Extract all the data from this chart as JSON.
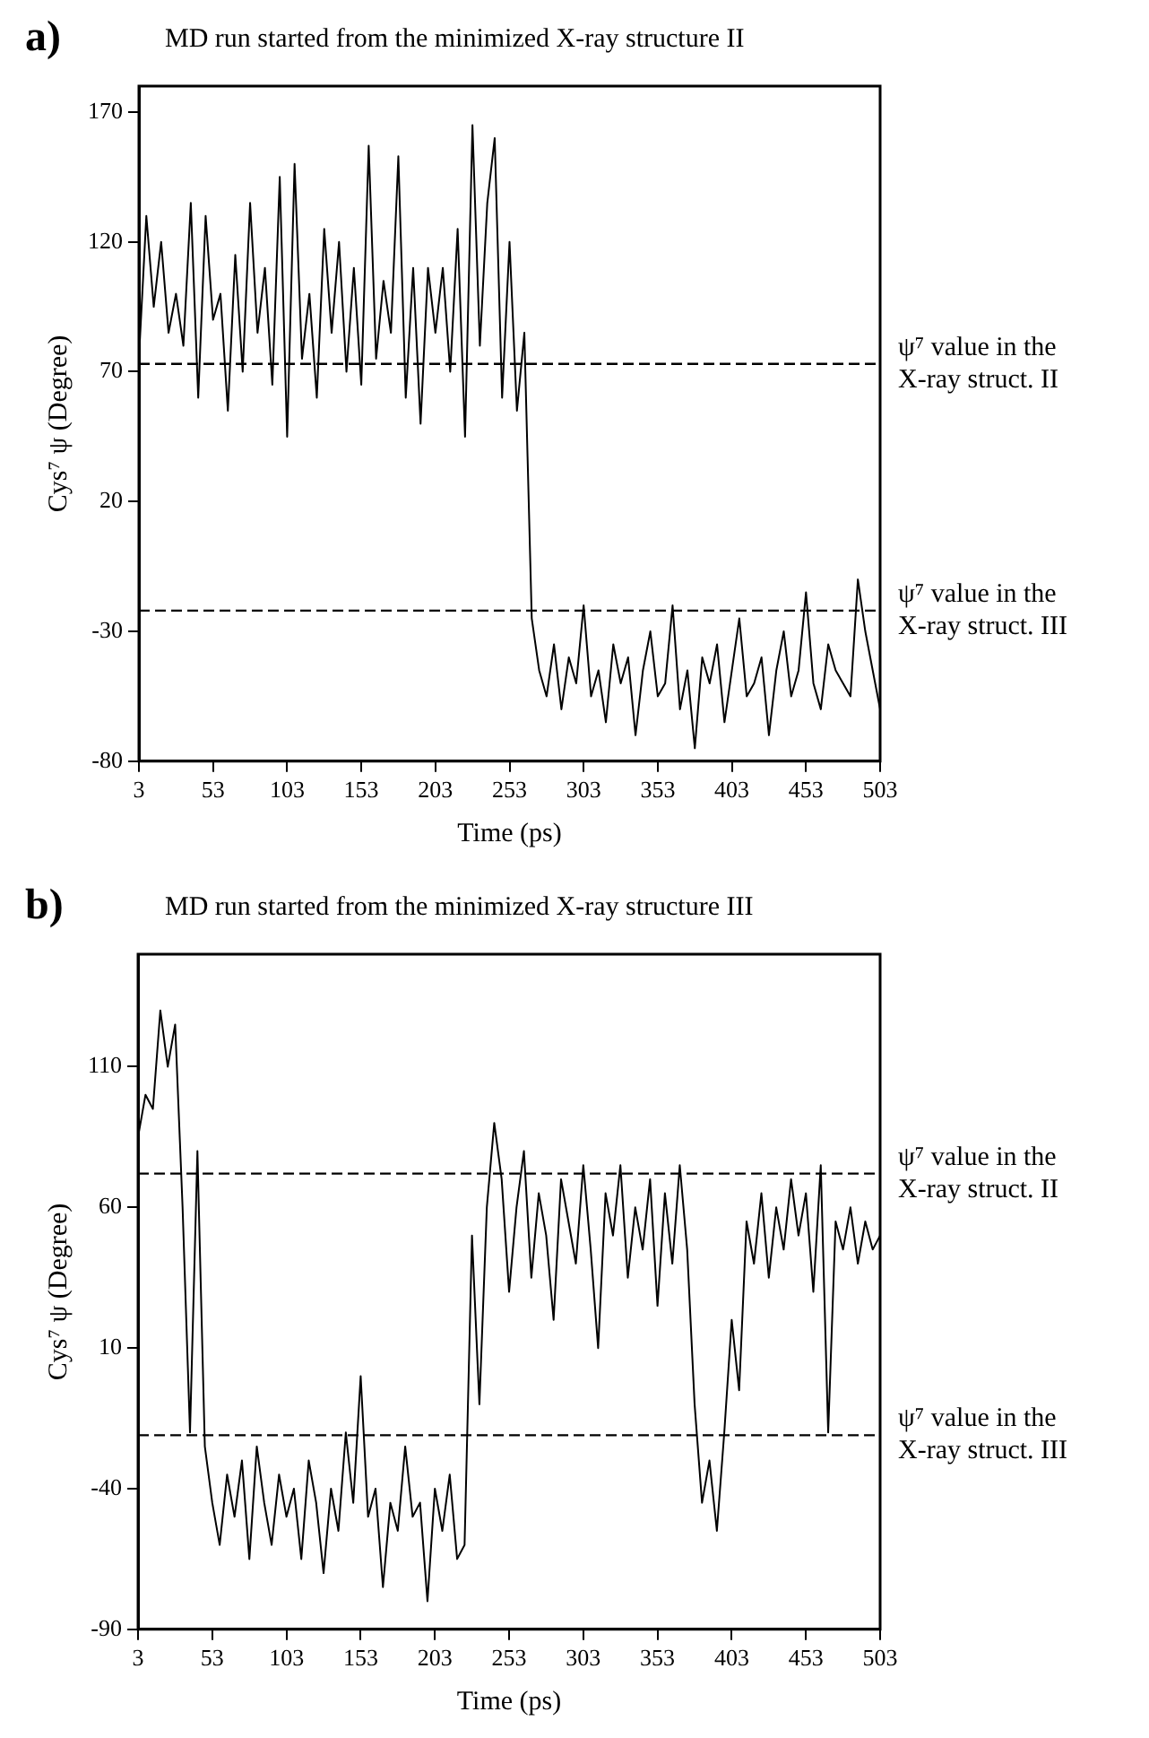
{
  "chart_data": [
    {
      "type": "line",
      "title": "MD run started from the minimized X-ray structure II",
      "annotations": [
        "a)"
      ],
      "xlabel": "Time (ps)",
      "ylabel": "Cys⁷ ψ (Degree)",
      "xlim": [
        3,
        503
      ],
      "xticks": [
        3,
        53,
        103,
        153,
        203,
        253,
        303,
        353,
        403,
        453,
        503
      ],
      "ylim": [
        -80,
        180
      ],
      "yticks": [
        -80,
        -30,
        20,
        70,
        120,
        170
      ],
      "grid": false,
      "legend": false,
      "marker": "none",
      "line_style": "solid",
      "ref_lines": [
        {
          "axis": "y",
          "value": 73,
          "label": "ψ⁷ value in the X-ray struct. II",
          "line_style": "dashed"
        },
        {
          "axis": "y",
          "value": -22,
          "label": "ψ⁷ value in the X-ray struct. III",
          "line_style": "dashed"
        }
      ],
      "series": [
        {
          "color": "#000000",
          "x": [
            3,
            8,
            13,
            18,
            23,
            28,
            33,
            38,
            43,
            48,
            53,
            58,
            63,
            68,
            73,
            78,
            83,
            88,
            93,
            98,
            103,
            108,
            113,
            118,
            123,
            128,
            133,
            138,
            143,
            148,
            153,
            158,
            163,
            168,
            173,
            178,
            183,
            188,
            193,
            198,
            203,
            208,
            213,
            218,
            223,
            228,
            233,
            238,
            243,
            248,
            253,
            258,
            263,
            268,
            273,
            278,
            283,
            288,
            293,
            298,
            303,
            308,
            313,
            318,
            323,
            328,
            333,
            338,
            343,
            348,
            353,
            358,
            363,
            368,
            373,
            378,
            383,
            388,
            393,
            398,
            403,
            408,
            413,
            418,
            423,
            428,
            433,
            438,
            443,
            448,
            453,
            458,
            463,
            468,
            473,
            478,
            483,
            488,
            493,
            498,
            503
          ],
          "values": [
            75,
            130,
            95,
            120,
            85,
            100,
            80,
            135,
            60,
            130,
            90,
            100,
            55,
            115,
            70,
            135,
            85,
            110,
            65,
            145,
            45,
            150,
            75,
            100,
            60,
            125,
            85,
            120,
            70,
            110,
            65,
            157,
            75,
            105,
            85,
            153,
            60,
            110,
            50,
            110,
            85,
            110,
            70,
            125,
            45,
            165,
            80,
            135,
            160,
            60,
            120,
            55,
            85,
            -25,
            -45,
            -55,
            -35,
            -60,
            -40,
            -50,
            -20,
            -55,
            -45,
            -65,
            -35,
            -50,
            -40,
            -70,
            -45,
            -30,
            -55,
            -50,
            -20,
            -60,
            -45,
            -75,
            -40,
            -50,
            -35,
            -65,
            -45,
            -25,
            -55,
            -50,
            -40,
            -70,
            -45,
            -30,
            -55,
            -45,
            -15,
            -50,
            -60,
            -35,
            -45,
            -50,
            -55,
            -10,
            -30,
            -45,
            -60
          ]
        }
      ]
    },
    {
      "type": "line",
      "title": "MD run started from the minimized X-ray structure III",
      "annotations": [
        "b)"
      ],
      "xlabel": "Time (ps)",
      "ylabel": "Cys⁷ ψ (Degree)",
      "xlim": [
        3,
        503
      ],
      "xticks": [
        3,
        53,
        103,
        153,
        203,
        253,
        303,
        353,
        403,
        453,
        503
      ],
      "ylim": [
        -90,
        150
      ],
      "yticks": [
        -90,
        -40,
        10,
        60,
        110
      ],
      "grid": false,
      "legend": false,
      "marker": "none",
      "line_style": "solid",
      "ref_lines": [
        {
          "axis": "y",
          "value": 72,
          "label": "ψ⁷ value in the X-ray struct. II",
          "line_style": "dashed"
        },
        {
          "axis": "y",
          "value": -21,
          "label": "ψ⁷ value in the X-ray struct. III",
          "line_style": "dashed"
        }
      ],
      "series": [
        {
          "color": "#000000",
          "x": [
            3,
            8,
            13,
            18,
            23,
            28,
            33,
            38,
            43,
            48,
            53,
            58,
            63,
            68,
            73,
            78,
            83,
            88,
            93,
            98,
            103,
            108,
            113,
            118,
            123,
            128,
            133,
            138,
            143,
            148,
            153,
            158,
            163,
            168,
            173,
            178,
            183,
            188,
            193,
            198,
            203,
            208,
            213,
            218,
            223,
            228,
            233,
            238,
            243,
            248,
            253,
            258,
            263,
            268,
            273,
            278,
            283,
            288,
            293,
            298,
            303,
            308,
            313,
            318,
            323,
            328,
            333,
            338,
            343,
            348,
            353,
            358,
            363,
            368,
            373,
            378,
            383,
            388,
            393,
            398,
            403,
            408,
            413,
            418,
            423,
            428,
            433,
            438,
            443,
            448,
            453,
            458,
            463,
            468,
            473,
            478,
            483,
            488,
            493,
            498,
            503
          ],
          "values": [
            85,
            100,
            95,
            130,
            110,
            125,
            60,
            -20,
            80,
            -25,
            -45,
            -60,
            -35,
            -50,
            -30,
            -65,
            -25,
            -45,
            -60,
            -35,
            -50,
            -40,
            -65,
            -30,
            -45,
            -70,
            -40,
            -55,
            -20,
            -45,
            0,
            -50,
            -40,
            -75,
            -45,
            -55,
            -25,
            -50,
            -45,
            -80,
            -40,
            -55,
            -35,
            -65,
            -60,
            50,
            -10,
            60,
            90,
            70,
            30,
            60,
            80,
            35,
            65,
            50,
            20,
            70,
            55,
            40,
            75,
            45,
            10,
            65,
            50,
            75,
            35,
            60,
            45,
            70,
            25,
            65,
            40,
            75,
            45,
            -10,
            -45,
            -30,
            -55,
            -20,
            20,
            -5,
            55,
            40,
            65,
            35,
            60,
            45,
            70,
            50,
            65,
            30,
            75,
            -20,
            55,
            45,
            60,
            40,
            55,
            45,
            50
          ]
        }
      ]
    }
  ]
}
